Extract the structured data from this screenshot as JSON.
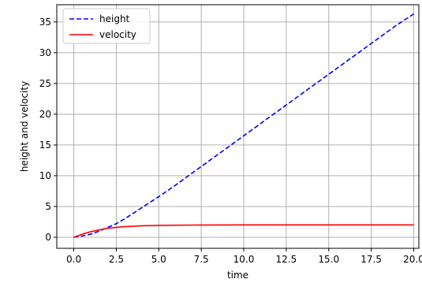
{
  "chart_data": {
    "type": "line",
    "title": "",
    "xlabel": "time",
    "ylabel": "height and velocity",
    "xlim": [
      -1,
      20.3
    ],
    "ylim": [
      -1.8,
      37.8
    ],
    "xticks": [
      0.0,
      2.5,
      5.0,
      7.5,
      10.0,
      12.5,
      15.0,
      17.5,
      20.0
    ],
    "xtick_labels": [
      "0.0",
      "2.5",
      "5.0",
      "7.5",
      "10.0",
      "12.5",
      "15.0",
      "17.5",
      "20.0"
    ],
    "yticks": [
      0,
      5,
      10,
      15,
      20,
      25,
      30,
      35
    ],
    "ytick_labels": [
      "0",
      "5",
      "10",
      "15",
      "20",
      "25",
      "30",
      "35"
    ],
    "grid": true,
    "legend_position": "upper-left",
    "series": [
      {
        "name": "height",
        "color": "#0000ff",
        "style": "dashed",
        "x": [
          0,
          0.5,
          1,
          1.5,
          2,
          2.5,
          3,
          3.5,
          4,
          5,
          6,
          7,
          8,
          9,
          10,
          11,
          12,
          13,
          14,
          15,
          16,
          17,
          18,
          19,
          20
        ],
        "y": [
          0,
          0.2,
          0.5,
          1.0,
          1.6,
          2.2,
          3.0,
          3.9,
          4.8,
          6.6,
          8.5,
          10.5,
          12.5,
          14.5,
          16.5,
          18.5,
          20.5,
          22.5,
          24.5,
          26.5,
          28.5,
          30.5,
          32.5,
          34.5,
          36.3
        ]
      },
      {
        "name": "velocity",
        "color": "#ff0000",
        "style": "solid",
        "x": [
          0,
          0.5,
          1,
          1.5,
          2,
          2.5,
          3,
          3.5,
          4,
          5,
          6,
          7,
          8,
          10,
          12,
          14,
          16,
          18,
          20
        ],
        "y": [
          0,
          0.5,
          0.9,
          1.2,
          1.45,
          1.6,
          1.72,
          1.8,
          1.86,
          1.93,
          1.96,
          1.98,
          1.99,
          2.0,
          2.0,
          2.0,
          2.0,
          2.0,
          2.0
        ]
      }
    ]
  }
}
